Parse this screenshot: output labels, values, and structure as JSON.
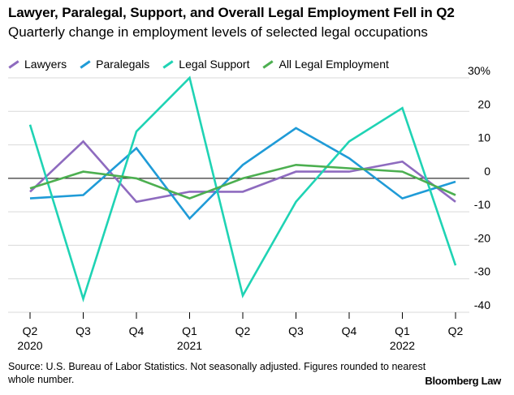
{
  "header": {
    "title": "Lawyer, Paralegal, Support, and Overall Legal Employment Fell in Q2",
    "subtitle": "Quarterly change in employment levels of selected legal occupations"
  },
  "footer": {
    "source": "Source: U.S. Bureau of Labor Statistics. Not seasonally adjusted. Figures rounded to nearest whole number.",
    "brand": "Bloomberg Law"
  },
  "chart_data": {
    "type": "line",
    "x": [
      "Q2 2020",
      "Q3",
      "Q4",
      "Q1 2021",
      "Q2",
      "Q3",
      "Q4",
      "Q1 2022",
      "Q2"
    ],
    "x_tick_labels": [
      "Q2",
      "Q3",
      "Q4",
      "Q1",
      "Q2",
      "Q3",
      "Q4",
      "Q1",
      "Q2"
    ],
    "x_year_labels": [
      {
        "index": 0,
        "label": "2020"
      },
      {
        "index": 3,
        "label": "2021"
      },
      {
        "index": 7,
        "label": "2022"
      }
    ],
    "ylim": [
      -40,
      30
    ],
    "y_ticks": [
      30,
      20,
      10,
      0,
      -10,
      -20,
      -30,
      -40
    ],
    "y_tick_labels": [
      "30%",
      "20",
      "10",
      "0",
      "-10",
      "-20",
      "-30",
      "-40"
    ],
    "grid": true,
    "legend_position": "top-left",
    "series": [
      {
        "name": "Lawyers",
        "color": "#8e6bbf",
        "values": [
          -4,
          11,
          -7,
          -4,
          -4,
          2,
          2,
          5,
          -7
        ]
      },
      {
        "name": "Paralegals",
        "color": "#1f9bd7",
        "values": [
          -6,
          -5,
          9,
          -12,
          4,
          15,
          6,
          -6,
          -1
        ]
      },
      {
        "name": "Legal Support",
        "color": "#1fd3b4",
        "values": [
          16,
          -36,
          14,
          30,
          -35,
          -7,
          11,
          21,
          -26
        ]
      },
      {
        "name": "All Legal Employment",
        "color": "#4caf50",
        "values": [
          -3,
          2,
          0,
          -6,
          0,
          4,
          3,
          2,
          -5
        ]
      }
    ]
  }
}
